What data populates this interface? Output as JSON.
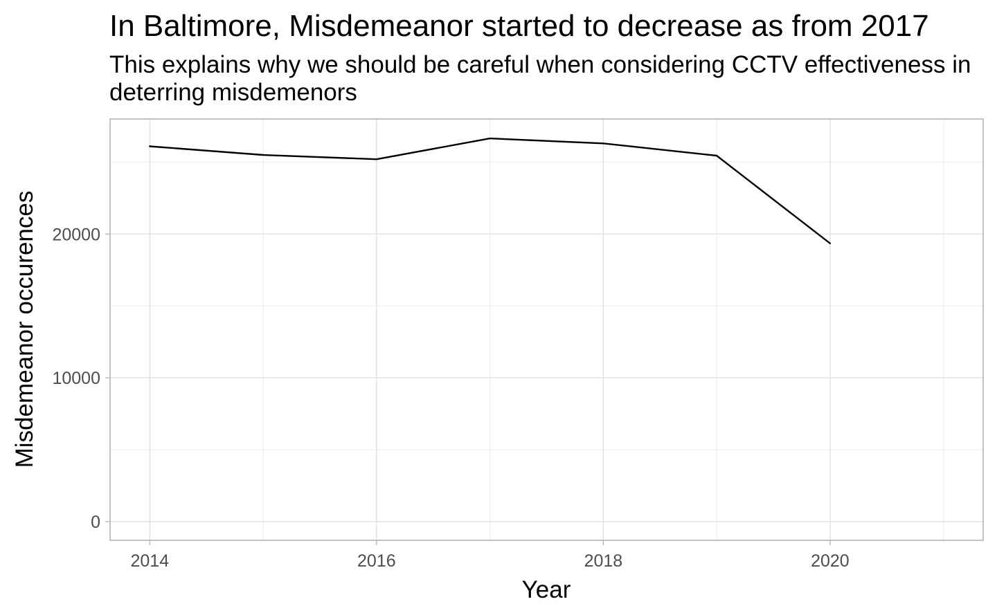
{
  "chart_data": {
    "type": "line",
    "title": "In Baltimore, Misdemeanor started to decrease as from 2017",
    "subtitle_lines": [
      "This explains why we should be careful when considering CCTV effectiveness in",
      "deterring misdemenors"
    ],
    "xlabel": "Year",
    "ylabel": "Misdemeanor occurences",
    "x": [
      2014,
      2015,
      2016,
      2017,
      2018,
      2019,
      2020
    ],
    "series": [
      {
        "values": [
          26100,
          25500,
          25200,
          26650,
          26300,
          25450,
          19350
        ],
        "color": "#000000"
      }
    ],
    "xlim": [
      2013.65,
      2021.35
    ],
    "ylim": [
      -1300,
      28000
    ],
    "x_ticks": [
      2014,
      2016,
      2018,
      2020
    ],
    "x_tick_labels": [
      "2014",
      "2016",
      "2018",
      "2020"
    ],
    "x_minor_ticks": [
      2015,
      2017,
      2019,
      2021
    ],
    "y_ticks": [
      0,
      10000,
      20000
    ],
    "y_tick_labels": [
      "0",
      "10000",
      "20000"
    ],
    "y_minor_ticks": [
      5000,
      15000,
      25000
    ],
    "grid": true,
    "legend": "none"
  }
}
